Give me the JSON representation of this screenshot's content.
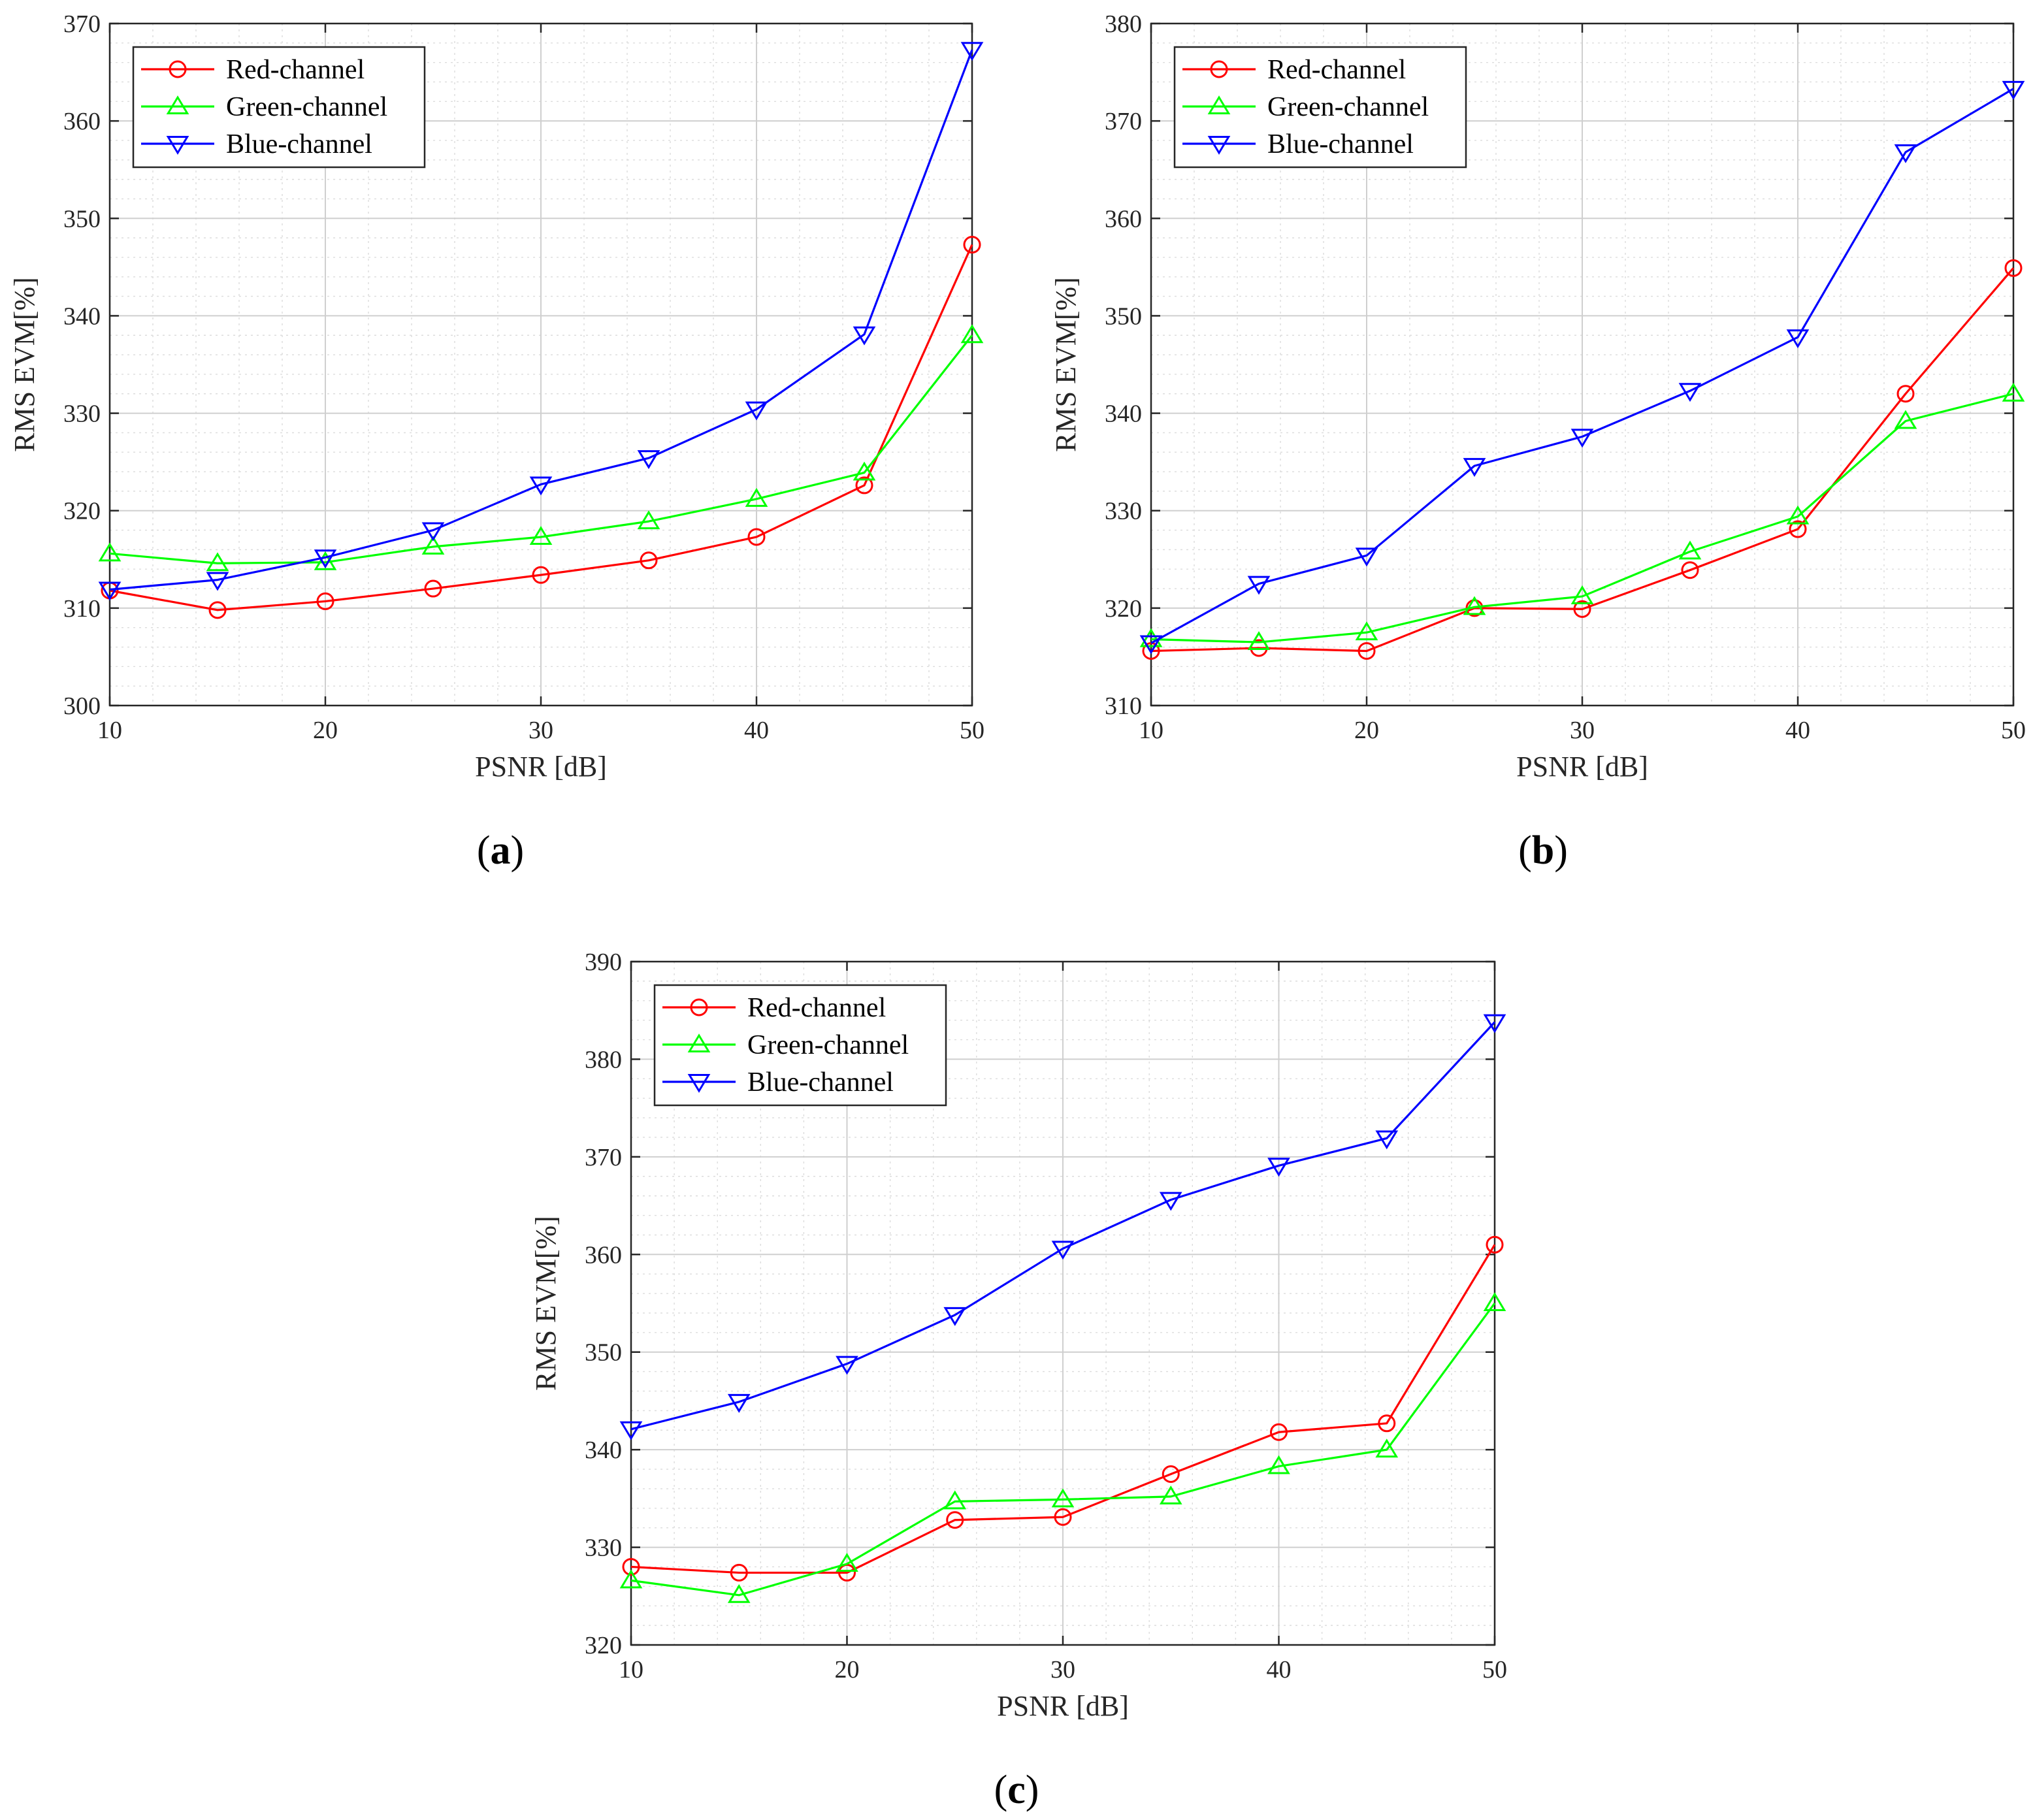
{
  "colors": {
    "Red-channel": "#ff0000",
    "Green-channel": "#00ff00",
    "Blue-channel": "#0000ff",
    "axes": "#262626",
    "grid": "#dcdcdc"
  },
  "chart_data": [
    {
      "type": "line",
      "panel_label": "a",
      "xlabel": "PSNR [dB]",
      "ylabel": "RMS EVM[%]",
      "xlim": [
        10,
        50
      ],
      "ylim": [
        300,
        370
      ],
      "xticks": [
        10,
        20,
        30,
        40,
        50
      ],
      "yticks": [
        300,
        310,
        320,
        330,
        340,
        350,
        360,
        370
      ],
      "grid": true,
      "minor_grid": true,
      "legend_position": "top-left",
      "x": [
        10,
        15,
        20,
        25,
        30,
        35,
        40,
        45,
        50
      ],
      "series": [
        {
          "name": "Red-channel",
          "marker": "circle",
          "values": [
            311.8,
            309.8,
            310.7,
            312.0,
            313.4,
            314.9,
            317.3,
            322.6,
            347.3
          ]
        },
        {
          "name": "Green-channel",
          "marker": "triangle-up",
          "values": [
            315.6,
            314.6,
            314.7,
            316.3,
            317.3,
            318.9,
            321.2,
            323.9,
            338.0
          ]
        },
        {
          "name": "Blue-channel",
          "marker": "triangle-down",
          "values": [
            311.9,
            312.9,
            315.2,
            318.0,
            322.7,
            325.4,
            330.4,
            338.1,
            367.3
          ]
        }
      ]
    },
    {
      "type": "line",
      "panel_label": "b",
      "xlabel": "PSNR [dB]",
      "ylabel": "RMS EVM[%]",
      "xlim": [
        10,
        50
      ],
      "ylim": [
        310,
        380
      ],
      "xticks": [
        10,
        20,
        30,
        40,
        50
      ],
      "yticks": [
        310,
        320,
        330,
        340,
        350,
        360,
        370,
        380
      ],
      "grid": true,
      "minor_grid": true,
      "legend_position": "top-left",
      "x": [
        10,
        15,
        20,
        25,
        30,
        35,
        40,
        45,
        50
      ],
      "series": [
        {
          "name": "Red-channel",
          "marker": "circle",
          "values": [
            315.6,
            315.9,
            315.6,
            320.0,
            319.9,
            323.9,
            328.1,
            342.0,
            354.9
          ]
        },
        {
          "name": "Green-channel",
          "marker": "triangle-up",
          "values": [
            316.8,
            316.5,
            317.5,
            320.1,
            321.2,
            325.8,
            329.4,
            339.2,
            342.0
          ]
        },
        {
          "name": "Blue-channel",
          "marker": "triangle-down",
          "values": [
            316.4,
            322.5,
            325.4,
            334.6,
            337.6,
            342.3,
            347.8,
            366.8,
            373.3
          ]
        }
      ]
    },
    {
      "type": "line",
      "panel_label": "c",
      "xlabel": "PSNR [dB]",
      "ylabel": "RMS EVM[%]",
      "xlim": [
        10,
        50
      ],
      "ylim": [
        320,
        390
      ],
      "xticks": [
        10,
        20,
        30,
        40,
        50
      ],
      "yticks": [
        320,
        330,
        340,
        350,
        360,
        370,
        380,
        390
      ],
      "grid": true,
      "minor_grid": true,
      "legend_position": "top-left",
      "x": [
        10,
        15,
        20,
        25,
        30,
        35,
        40,
        45,
        50
      ],
      "series": [
        {
          "name": "Red-channel",
          "marker": "circle",
          "values": [
            328.0,
            327.4,
            327.4,
            332.8,
            333.1,
            337.5,
            341.8,
            342.7,
            361.0
          ]
        },
        {
          "name": "Green-channel",
          "marker": "triangle-up",
          "values": [
            326.6,
            325.1,
            328.3,
            334.7,
            334.9,
            335.2,
            338.3,
            340.0,
            355.0
          ]
        },
        {
          "name": "Blue-channel",
          "marker": "triangle-down",
          "values": [
            342.1,
            344.9,
            348.8,
            353.8,
            360.6,
            365.6,
            369.1,
            371.9,
            383.8
          ]
        }
      ]
    }
  ]
}
